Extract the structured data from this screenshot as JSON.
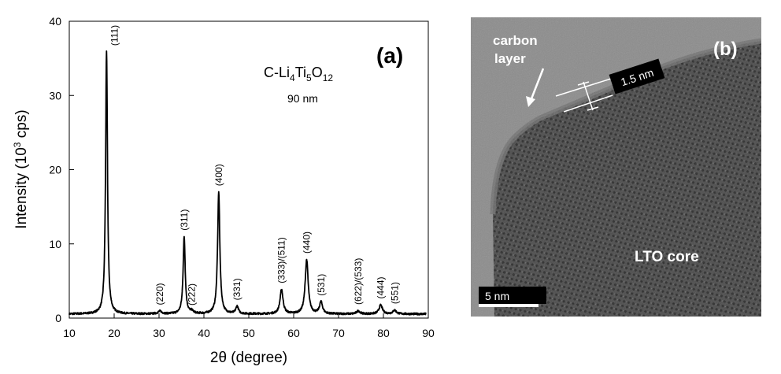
{
  "chart_data": {
    "type": "line",
    "title": "",
    "xlabel": "2θ (degree)",
    "ylabel_parts": {
      "base": "Intensity (10",
      "sup": "3",
      "tail": " cps)"
    },
    "xlim": [
      10,
      90
    ],
    "ylim": [
      0,
      40
    ],
    "xticks": [
      10,
      20,
      30,
      40,
      50,
      60,
      70,
      80,
      90
    ],
    "yticks": [
      0,
      10,
      20,
      30,
      40
    ],
    "grid": false,
    "panel_label": "(a)",
    "sample_label_parts": [
      "C-Li",
      "4",
      "Ti",
      "5",
      "O",
      "12"
    ],
    "size_label": "90 nm",
    "baseline": 0.55,
    "peaks": [
      {
        "x": 18.3,
        "height": 35.3,
        "width": 0.25,
        "label": "(111)"
      },
      {
        "x": 30.2,
        "height": 0.35,
        "width": 0.5,
        "label": "(220)"
      },
      {
        "x": 35.6,
        "height": 10.4,
        "width": 0.28,
        "label": "(311)"
      },
      {
        "x": 37.3,
        "height": 0.3,
        "width": 0.4,
        "label": "(222)"
      },
      {
        "x": 43.3,
        "height": 16.4,
        "width": 0.3,
        "label": "(400)"
      },
      {
        "x": 47.4,
        "height": 1.0,
        "width": 0.35,
        "label": "(331)"
      },
      {
        "x": 57.3,
        "height": 3.3,
        "width": 0.4,
        "label": "(333)/(511)"
      },
      {
        "x": 62.9,
        "height": 7.3,
        "width": 0.4,
        "label": "(440)"
      },
      {
        "x": 66.1,
        "height": 1.6,
        "width": 0.4,
        "label": "(531)"
      },
      {
        "x": 74.4,
        "height": 0.4,
        "width": 0.45,
        "label": "(622)/(533)"
      },
      {
        "x": 79.4,
        "height": 1.2,
        "width": 0.45,
        "label": "(444)"
      },
      {
        "x": 82.5,
        "height": 0.5,
        "width": 0.45,
        "label": "(551)"
      }
    ]
  },
  "tem": {
    "panel_label": "(b)",
    "carbon_label_line1": "carbon",
    "carbon_label_line2": "layer",
    "thickness_label": "1.5 nm",
    "core_label": "LTO core",
    "scalebar_label": "5 nm"
  }
}
